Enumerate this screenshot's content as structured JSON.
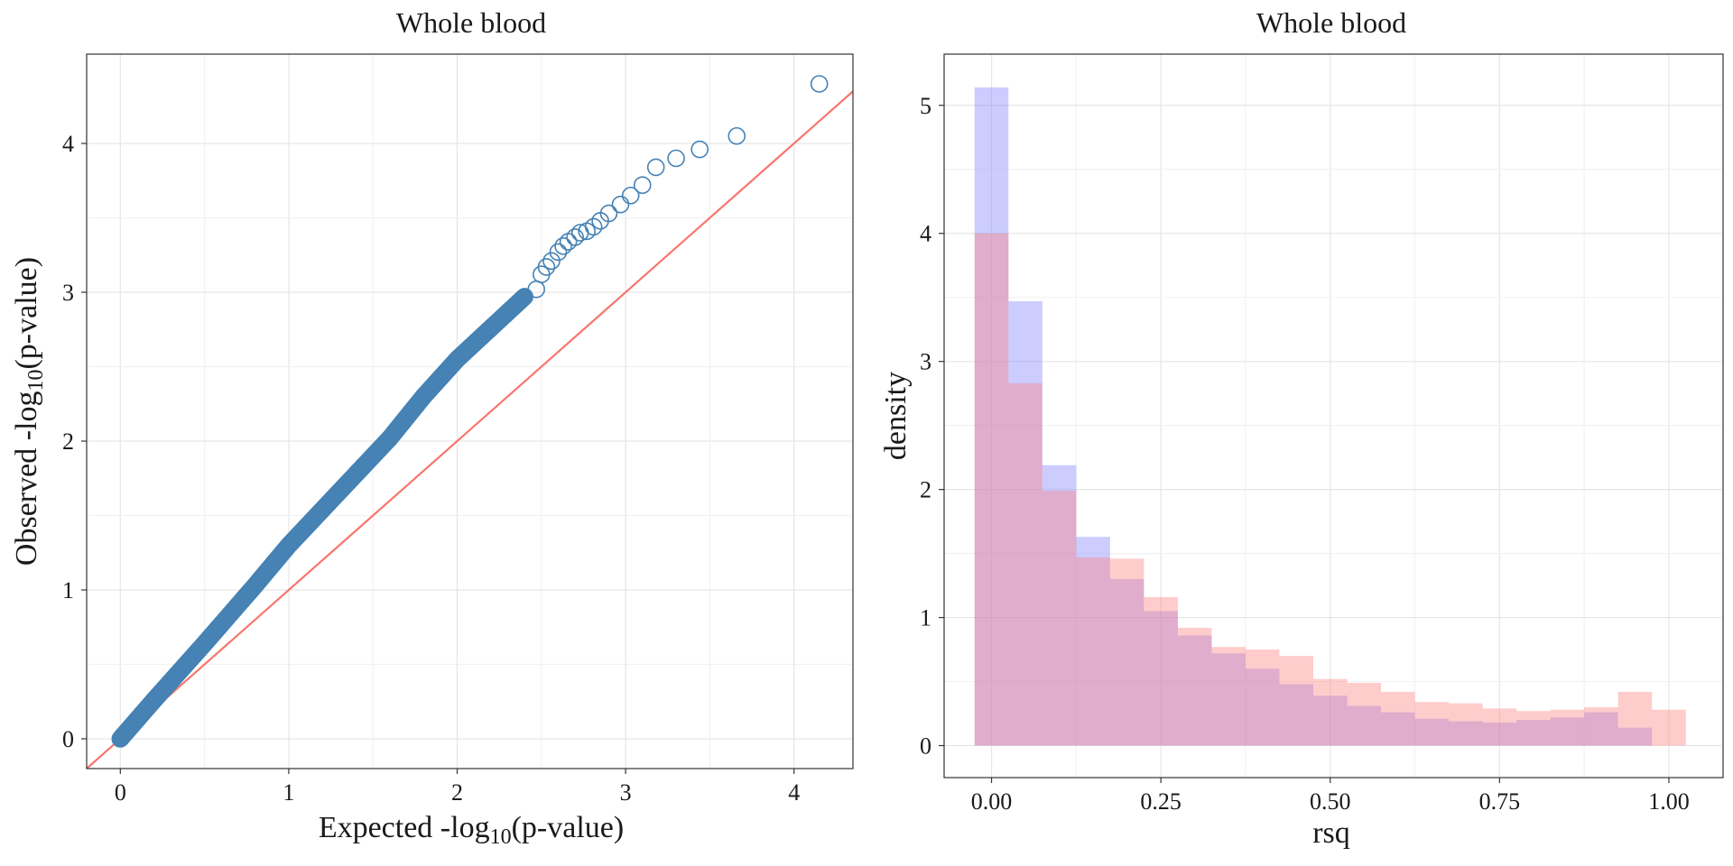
{
  "chart_data": [
    {
      "type": "scatter",
      "title": "Whole blood",
      "xlabel": {
        "pre": "Expected -log",
        "sub": "10",
        "post": "(p-value)"
      },
      "ylabel": {
        "pre": "Observed -log",
        "sub": "10",
        "post": "(p-value)"
      },
      "xlim": [
        -0.2,
        4.35
      ],
      "ylim": [
        -0.2,
        4.6
      ],
      "xticks": [
        "0",
        "1",
        "2",
        "3",
        "4"
      ],
      "yticks": [
        "0",
        "1",
        "2",
        "3",
        "4"
      ],
      "grid": true,
      "colors": {
        "points": "#4682b4",
        "reference_line": "#f8766d"
      },
      "reference_line": {
        "intercept": 0,
        "slope": 1
      },
      "curve": [
        [
          0,
          0
        ],
        [
          0.2,
          0.26
        ],
        [
          0.5,
          0.64
        ],
        [
          0.8,
          1.03
        ],
        [
          1.0,
          1.3
        ],
        [
          1.3,
          1.66
        ],
        [
          1.6,
          2.02
        ],
        [
          1.8,
          2.3
        ],
        [
          2.0,
          2.55
        ],
        [
          2.2,
          2.76
        ],
        [
          2.4,
          2.97
        ]
      ],
      "points": [
        [
          2.47,
          3.02
        ],
        [
          2.5,
          3.12
        ],
        [
          2.53,
          3.17
        ],
        [
          2.56,
          3.21
        ],
        [
          2.6,
          3.27
        ],
        [
          2.63,
          3.31
        ],
        [
          2.66,
          3.34
        ],
        [
          2.7,
          3.37
        ],
        [
          2.73,
          3.4
        ],
        [
          2.77,
          3.41
        ],
        [
          2.81,
          3.44
        ],
        [
          2.85,
          3.48
        ],
        [
          2.9,
          3.53
        ],
        [
          2.97,
          3.59
        ],
        [
          3.03,
          3.65
        ],
        [
          3.1,
          3.72
        ],
        [
          3.18,
          3.84
        ],
        [
          3.3,
          3.9
        ],
        [
          3.44,
          3.96
        ],
        [
          3.66,
          4.05
        ],
        [
          4.15,
          4.4
        ]
      ]
    },
    {
      "type": "bar",
      "title": "Whole blood",
      "xlabel": "rsq",
      "ylabel": "density",
      "xlim": [
        -0.07,
        1.08
      ],
      "ylim": [
        -0.25,
        5.4
      ],
      "xticks": [
        "0.00",
        "0.25",
        "0.50",
        "0.75",
        "1.00"
      ],
      "yticks": [
        "0",
        "1",
        "2",
        "3",
        "4",
        "5"
      ],
      "grid": true,
      "colors": {
        "series_1": "#8080ff",
        "series_2": "#ff8080"
      },
      "bin_start": -0.025,
      "bin_width": 0.05,
      "series": [
        {
          "values": [
            5.14,
            3.47,
            2.19,
            1.63,
            1.3,
            1.05,
            0.86,
            0.72,
            0.6,
            0.48,
            0.39,
            0.31,
            0.26,
            0.21,
            0.19,
            0.18,
            0.2,
            0.22,
            0.26,
            0.14
          ]
        },
        {
          "values": [
            4.0,
            2.83,
            1.99,
            1.47,
            1.46,
            1.16,
            0.92,
            0.77,
            0.75,
            0.7,
            0.52,
            0.49,
            0.42,
            0.34,
            0.33,
            0.29,
            0.27,
            0.28,
            0.3,
            0.42,
            0.28
          ]
        }
      ]
    }
  ]
}
